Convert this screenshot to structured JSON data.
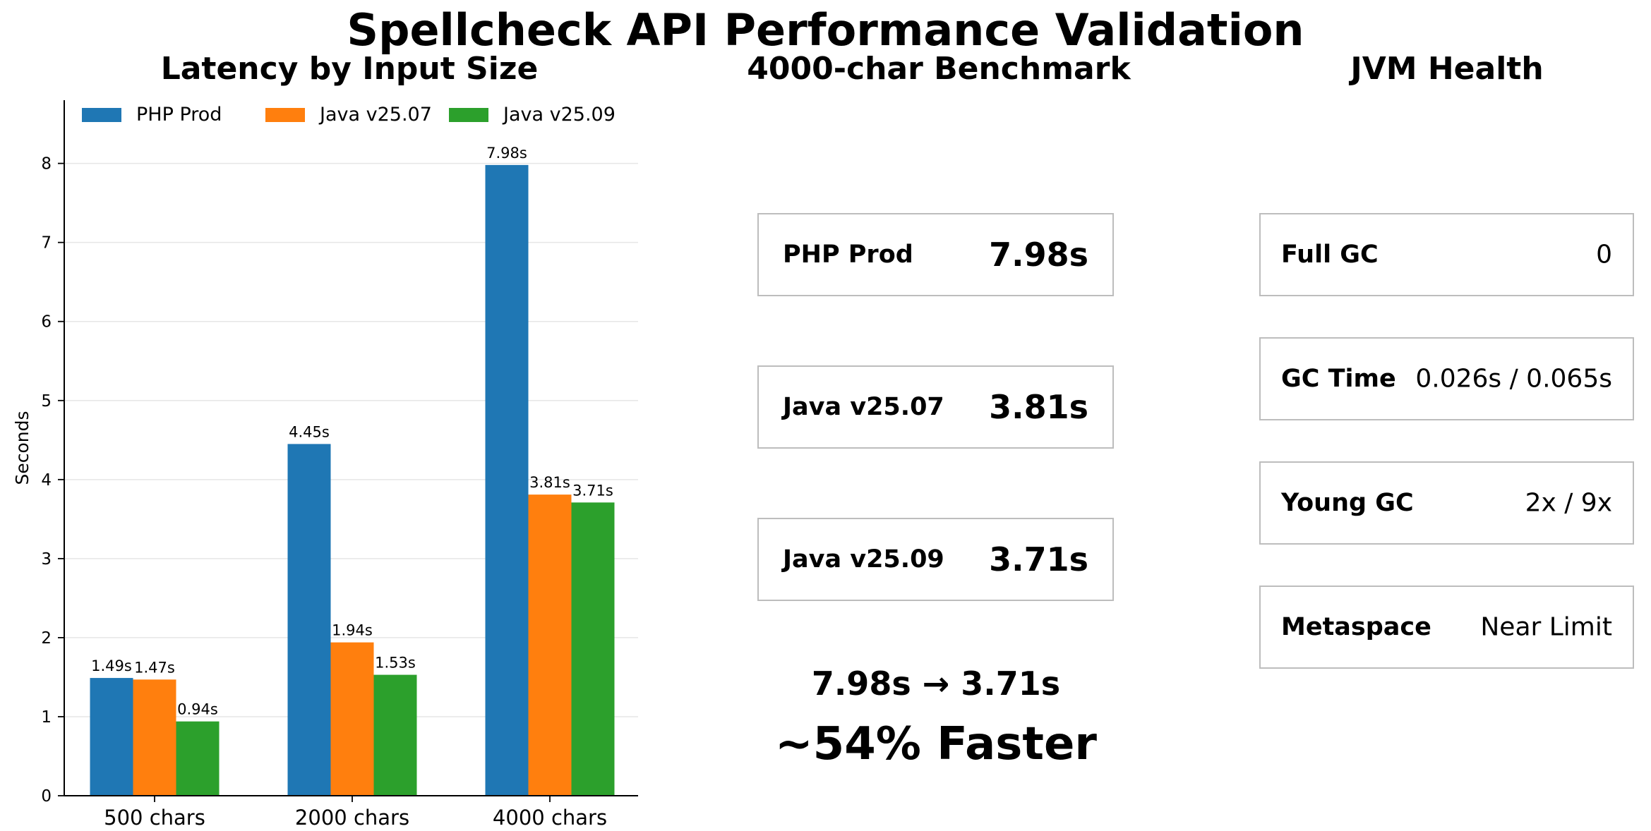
{
  "title": "Spellcheck API Performance Validation",
  "panels": {
    "latency_title": "Latency by Input Size",
    "benchmark_title": "4000-char Benchmark",
    "jvm_title": "JVM Health"
  },
  "chart_data": {
    "type": "bar",
    "title": "Latency by Input Size",
    "xlabel": "",
    "ylabel": "Seconds",
    "ylim": [
      0,
      8.8
    ],
    "yticks": [
      "0",
      "1",
      "2",
      "3",
      "4",
      "5",
      "6",
      "7",
      "8"
    ],
    "grid": "y",
    "legend": "top",
    "categories": [
      "500 chars",
      "2000 chars",
      "4000 chars"
    ],
    "series": [
      {
        "name": "PHP Prod",
        "color": "#1f77b4",
        "values": [
          1.49,
          4.45,
          7.98
        ],
        "labels": [
          "1.49s",
          "4.45s",
          "7.98s"
        ]
      },
      {
        "name": "Java v25.07",
        "color": "#ff7f0e",
        "values": [
          1.47,
          1.94,
          3.81
        ],
        "labels": [
          "1.47s",
          "1.94s",
          "3.81s"
        ]
      },
      {
        "name": "Java v25.09",
        "color": "#2ca02c",
        "values": [
          0.94,
          1.53,
          3.71
        ],
        "labels": [
          "0.94s",
          "1.53s",
          "3.71s"
        ]
      }
    ]
  },
  "benchmark": {
    "cards": [
      {
        "label": "PHP Prod",
        "value": "7.98s"
      },
      {
        "label": "Java v25.07",
        "value": "3.81s"
      },
      {
        "label": "Java v25.09",
        "value": "3.71s"
      }
    ],
    "change": "7.98s → 3.71s",
    "headline": "~54% Faster"
  },
  "jvm": {
    "cards": [
      {
        "label": "Full GC",
        "value": "0"
      },
      {
        "label": "GC Time",
        "value": "0.026s / 0.065s"
      },
      {
        "label": "Young GC",
        "value": "2x / 9x"
      },
      {
        "label": "Metaspace",
        "value": "Near Limit"
      }
    ]
  }
}
